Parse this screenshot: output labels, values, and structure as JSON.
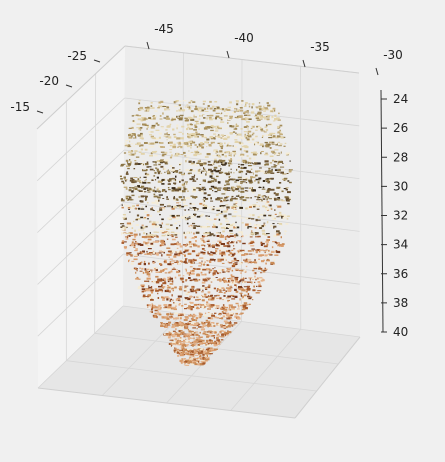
{
  "chart_data": {
    "type": "scatter",
    "projection": "3d",
    "title": "",
    "xlabel": "",
    "ylabel": "",
    "zlabel": "",
    "grid": true,
    "pane_colors": {
      "background": "#f0f0f0",
      "left_wall": "#f4f4f4",
      "right_wall": "#ececec",
      "floor": "#e6e6e6",
      "grid": "#d6d6d6",
      "axis_line": "#333333"
    },
    "x_axis": {
      "ticks": [
        "-45",
        "-40",
        "-35",
        "-30"
      ],
      "values": [
        -45,
        -40,
        -35,
        -30
      ]
    },
    "y_axis": {
      "ticks": [
        "-25",
        "-20",
        "-15"
      ],
      "values": [
        -25,
        -20,
        -15
      ]
    },
    "z_axis": {
      "ticks": [
        "24",
        "26",
        "28",
        "30",
        "32",
        "34",
        "36",
        "38",
        "40"
      ],
      "values": [
        24,
        26,
        28,
        30,
        32,
        34,
        36,
        38,
        40
      ],
      "inverted": true
    },
    "point_cloud": {
      "subject": "face",
      "palette": [
        "#3a2c1a",
        "#6b5332",
        "#8a7445",
        "#a58d5a",
        "#c4ad7c",
        "#e2d3aa",
        "#f5ecd5",
        "#c98a55",
        "#a65a2c",
        "#7a3a1c",
        "#e4b28a",
        "#d99b6a"
      ]
    }
  }
}
